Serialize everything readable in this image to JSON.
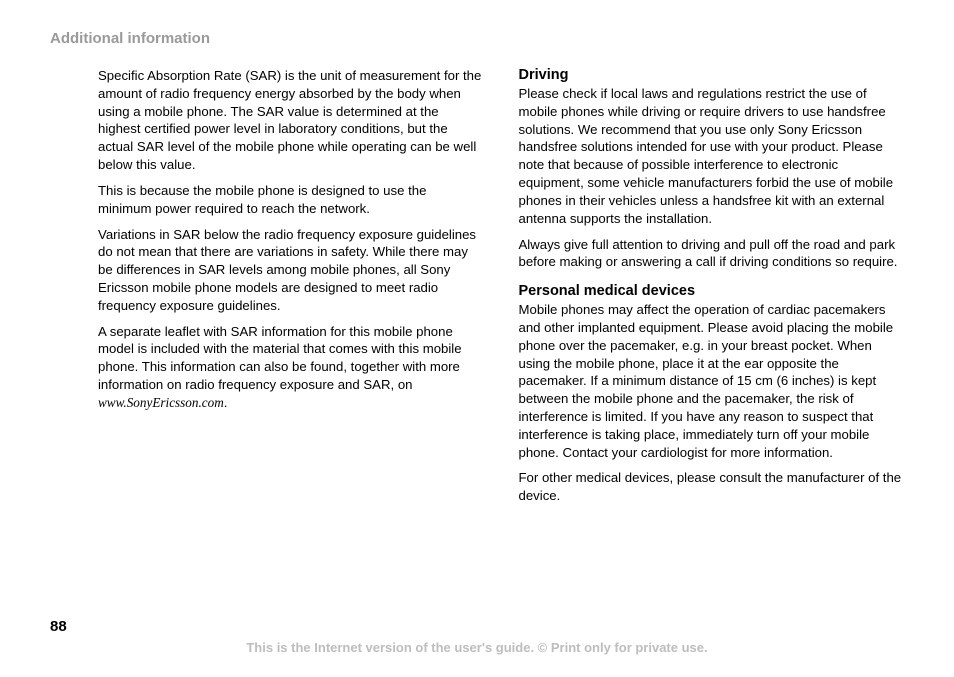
{
  "header": "Additional information",
  "left": {
    "p1": "Specific Absorption Rate (SAR) is the unit of measurement for the amount of radio frequency energy absorbed by the body when using a mobile phone. The SAR value is determined at the highest certified power level in laboratory conditions, but the actual SAR level of the mobile phone while operating can be well below this value.",
    "p2": "This is because the mobile phone is designed to use the minimum power required to reach the network.",
    "p3": "Variations in SAR below the radio frequency exposure guidelines do not mean that there are variations in safety. While there may be differences in SAR levels among mobile phones, all Sony Ericsson mobile phone models are designed to meet radio frequency exposure guidelines.",
    "p4_pre": "A separate leaflet with SAR information for this mobile phone model is included with the material that comes with this mobile phone. This information can also be found, together with more information on radio frequency exposure and SAR, on ",
    "p4_url": "www.SonyEricsson.com",
    "p4_post": "."
  },
  "right": {
    "h1": "Driving",
    "p1": "Please check if local laws and regulations restrict the use of mobile phones while driving or require drivers to use handsfree solutions. We recommend that you use only Sony Ericsson handsfree solutions intended for use with your product. Please note that because of possible interference to electronic equipment, some vehicle manufacturers forbid the use of mobile phones in their vehicles unless a handsfree kit with an external antenna supports the installation.",
    "p2": "Always give full attention to driving and pull off the road and park before making or answering a call if driving conditions so require.",
    "h2": "Personal medical devices",
    "p3": "Mobile phones may affect the operation of cardiac pacemakers and other implanted equipment. Please avoid placing the mobile phone over the pacemaker, e.g. in your breast pocket. When using the mobile phone, place it at the ear opposite the pacemaker. If a minimum distance of 15 cm (6 inches) is kept between the mobile phone and the pacemaker, the risk of interference is limited. If you have any reason to suspect that interference is taking place, immediately turn off your mobile phone. Contact your cardiologist for more information.",
    "p4": "For other medical devices, please consult the manufacturer of the device."
  },
  "page_number": "88",
  "footer": "This is the Internet version of the user's guide. © Print only for private use."
}
